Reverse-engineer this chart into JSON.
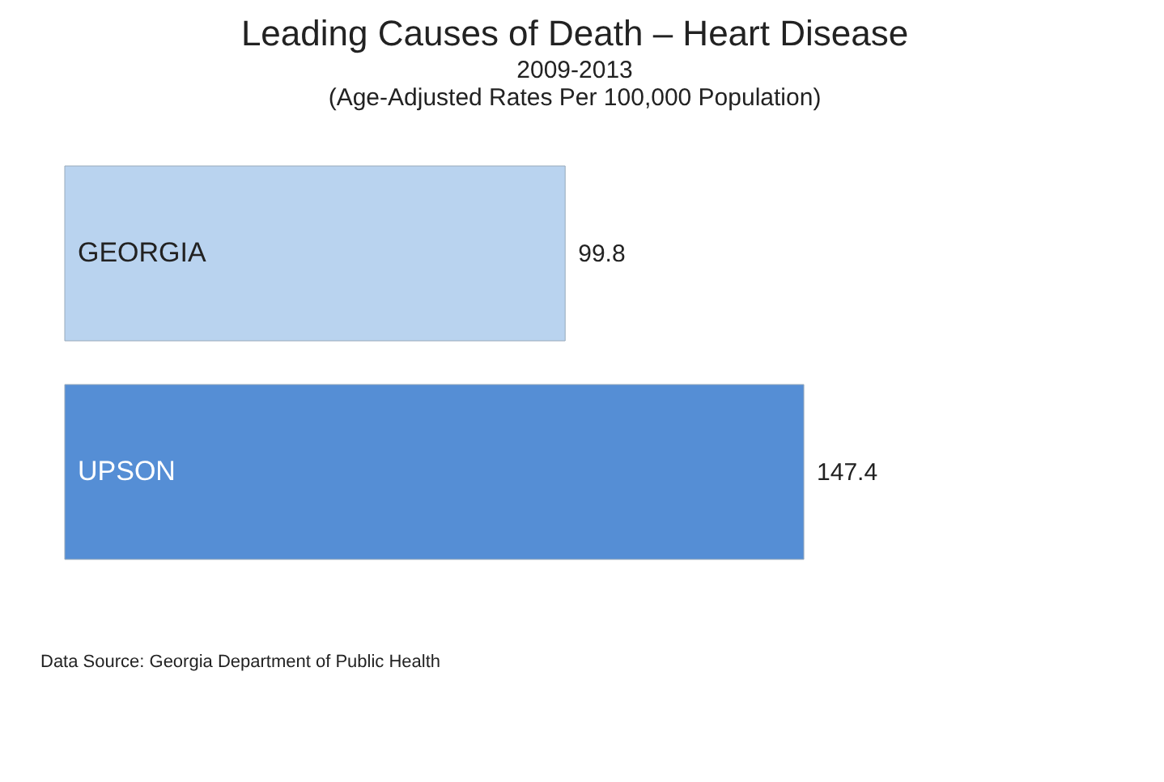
{
  "chart_data": {
    "type": "bar",
    "orientation": "horizontal",
    "title": "Leading Causes of Death – Heart Disease",
    "subtitle": "2009-2013\n(Age-Adjusted Rates Per 100,000 Population)",
    "categories": [
      "GEORGIA",
      "UPSON"
    ],
    "values": [
      99.8,
      147.4
    ],
    "colors": [
      "#b9d3ef",
      "#558ed5"
    ],
    "data_labels": true,
    "annotations": [
      "Data Source: Georgia Department of Public Health"
    ]
  }
}
